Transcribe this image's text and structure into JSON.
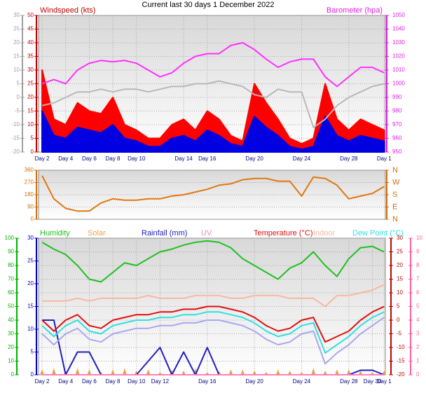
{
  "chart_data": [
    {
      "type": "line",
      "title": "Current last 30 days 1 December 2022",
      "ylabel": "Windspeed (kts)",
      "y2label": "Barometer (hpa)",
      "x": [
        0,
        1,
        2,
        3,
        4,
        5,
        6,
        7,
        8,
        9,
        10,
        11,
        12,
        13,
        14,
        15,
        16,
        17,
        18,
        19,
        20,
        21,
        22,
        23,
        24,
        25,
        26,
        27,
        28,
        29
      ],
      "xlim": [
        -0.3,
        29.1
      ],
      "xticks": [
        {
          "value": 0,
          "label": "Day 2"
        },
        {
          "value": 2,
          "label": "Day 4"
        },
        {
          "value": 4,
          "label": "Day 6"
        },
        {
          "value": 6,
          "label": "Day 8"
        },
        {
          "value": 8,
          "label": "Day 10"
        },
        {
          "value": 12,
          "label": "Day 14"
        },
        {
          "value": 14,
          "label": "Day 16"
        },
        {
          "value": 18,
          "label": "Day 20"
        },
        {
          "value": 22,
          "label": "Day 24"
        },
        {
          "value": 26,
          "label": "Day 28"
        },
        {
          "value": 29,
          "label": "Day 1"
        }
      ],
      "ylim": [
        0,
        50
      ],
      "yticks": [
        0,
        5,
        10,
        15,
        20,
        25,
        30,
        35,
        40,
        45,
        50
      ],
      "ycolor": "#c00000",
      "y2lim": [
        950,
        1050
      ],
      "y2ticks": [
        950,
        960,
        970,
        980,
        990,
        1000,
        1010,
        1020,
        1030,
        1040,
        1050
      ],
      "y2color": "#e020e0",
      "y3lim": [
        -20,
        30
      ],
      "y3ticks": [
        -20,
        -15,
        -10,
        -5,
        0,
        5,
        10,
        15,
        20,
        25,
        30
      ],
      "y3color": "#a0a0a0",
      "grid": true,
      "series": [
        {
          "color": "#ff0000",
          "fill": true,
          "axis": "y",
          "values": [
            30,
            12,
            10,
            18,
            15,
            14,
            20,
            10,
            8,
            5,
            5,
            10,
            12,
            8,
            15,
            12,
            6,
            4,
            25,
            18,
            12,
            5,
            3,
            5,
            25,
            12,
            8,
            12,
            10,
            8
          ]
        },
        {
          "color": "#0000e0",
          "fill": true,
          "axis": "y",
          "values": [
            15,
            6,
            5,
            9,
            8,
            7,
            10,
            5,
            4,
            2,
            2,
            5,
            6,
            4,
            8,
            6,
            3,
            2,
            13,
            9,
            6,
            2,
            1,
            2,
            13,
            6,
            4,
            6,
            5,
            4
          ]
        },
        {
          "color": "#b8b8b8",
          "axis": "y3",
          "values": [
            -3,
            -2,
            0,
            2,
            2,
            3,
            2,
            3,
            3,
            2,
            3,
            4,
            4,
            5,
            5,
            6,
            5,
            4,
            1,
            0,
            3,
            2,
            2,
            -11,
            -8,
            -3,
            0,
            2,
            4,
            5
          ]
        },
        {
          "color": "#ff30ff",
          "axis": "y2",
          "values": [
            1000,
            1003,
            1000,
            1010,
            1015,
            1017,
            1016,
            1017,
            1015,
            1010,
            1005,
            1008,
            1015,
            1020,
            1022,
            1022,
            1028,
            1030,
            1025,
            1018,
            1012,
            1016,
            1018,
            1018,
            1005,
            998,
            1005,
            1012,
            1012,
            1008
          ]
        }
      ]
    },
    {
      "type": "line",
      "x": [
        0,
        1,
        2,
        3,
        4,
        5,
        6,
        7,
        8,
        9,
        10,
        11,
        12,
        13,
        14,
        15,
        16,
        17,
        18,
        19,
        20,
        21,
        22,
        23,
        24,
        25,
        26,
        27,
        28,
        29
      ],
      "xlim": [
        -0.3,
        29.1
      ],
      "ylim": [
        0,
        360
      ],
      "yticks": [
        0,
        90,
        180,
        270,
        360
      ],
      "ycolor": "#d07010",
      "y2lim": [
        0,
        360
      ],
      "y2ticks": [
        {
          "value": 0,
          "label": "N"
        },
        {
          "value": 90,
          "label": "E"
        },
        {
          "value": 180,
          "label": "S"
        },
        {
          "value": 270,
          "label": "W"
        },
        {
          "value": 360,
          "label": "N"
        }
      ],
      "y2color": "#d07010",
      "grid": true,
      "series": [
        {
          "color": "#e07810",
          "axis": "y",
          "values": [
            320,
            150,
            80,
            60,
            60,
            120,
            150,
            140,
            140,
            150,
            150,
            170,
            180,
            200,
            220,
            250,
            260,
            290,
            300,
            300,
            280,
            280,
            170,
            310,
            300,
            250,
            150,
            170,
            190,
            240
          ]
        }
      ]
    },
    {
      "type": "line",
      "x": [
        0,
        1,
        2,
        3,
        4,
        5,
        6,
        7,
        8,
        9,
        10,
        11,
        12,
        13,
        14,
        15,
        16,
        17,
        18,
        19,
        20,
        21,
        22,
        23,
        24,
        25,
        26,
        27,
        28,
        29
      ],
      "xlim": [
        -0.3,
        29.1
      ],
      "xticks": [
        {
          "value": 0,
          "label": "Day 2"
        },
        {
          "value": 2,
          "label": "Day 4"
        },
        {
          "value": 4,
          "label": "Day 6"
        },
        {
          "value": 6,
          "label": "Day 8"
        },
        {
          "value": 8,
          "label": "Day 10"
        },
        {
          "value": 10,
          "label": "Day 12"
        },
        {
          "value": 14,
          "label": "Day 16"
        },
        {
          "value": 18,
          "label": "Day 20"
        },
        {
          "value": 22,
          "label": "Day 24"
        },
        {
          "value": 26,
          "label": "Day 28"
        },
        {
          "value": 28,
          "label": "Day 30"
        },
        {
          "value": 29,
          "label": "Day 1"
        }
      ],
      "ylim": [
        0,
        100
      ],
      "yticks": [
        0,
        10,
        20,
        30,
        40,
        50,
        60,
        70,
        80,
        90,
        100
      ],
      "ycolor": "#00b000",
      "y2lim": [
        0,
        30
      ],
      "y2ticks": [
        0,
        5,
        10,
        15,
        20,
        25,
        30
      ],
      "y2color": "#0000c0",
      "y3lim": [
        -20,
        30
      ],
      "y3ticks": [
        -20,
        -15,
        -10,
        -5,
        0,
        5,
        10,
        15,
        20,
        25,
        30
      ],
      "y3color": "#c00000",
      "y4lim": [
        0,
        10
      ],
      "y4ticks": [
        0,
        1,
        2,
        3,
        4,
        5,
        6,
        7,
        8,
        9,
        10
      ],
      "y4color": "#ff60a0",
      "grid": true,
      "series": [
        {
          "name": "Humidity",
          "color": "#20c020",
          "axis": "y",
          "values": [
            97,
            92,
            88,
            80,
            70,
            68,
            75,
            82,
            80,
            85,
            90,
            92,
            95,
            97,
            98,
            97,
            93,
            85,
            80,
            75,
            70,
            78,
            82,
            90,
            80,
            72,
            85,
            93,
            94,
            90
          ]
        },
        {
          "name": "Solar",
          "color": "#f0a040",
          "axis": "y",
          "bars": true,
          "values": [
            4,
            5,
            3,
            5,
            4,
            2,
            4,
            5,
            3,
            4,
            2,
            4,
            3,
            5,
            2,
            3,
            4,
            4,
            3,
            2,
            4,
            3,
            2,
            5,
            3,
            4,
            4,
            3,
            2,
            3
          ]
        },
        {
          "name": "Rainfall (mm)",
          "color": "#2020c0",
          "axis": "y2",
          "values": [
            12,
            12,
            0,
            5,
            5,
            0,
            0,
            0,
            0,
            3,
            6,
            0,
            5,
            0,
            6,
            0,
            0,
            0,
            0,
            0,
            0,
            0,
            0,
            0,
            0,
            0,
            0,
            1,
            1,
            0
          ]
        },
        {
          "name": "UV",
          "color": "#ff80c0",
          "axis": "y4",
          "values": [
            0,
            0,
            0,
            0,
            0,
            0,
            0,
            0,
            0,
            0,
            0,
            0,
            0,
            0,
            0,
            0,
            0,
            0,
            0,
            0,
            0,
            0,
            0,
            0,
            0,
            0,
            0,
            0,
            0,
            0
          ]
        },
        {
          "name": "Temperature (°C)",
          "color": "#e01010",
          "axis": "y3",
          "values": [
            0,
            -4,
            0,
            2,
            -2,
            -3,
            0,
            1,
            2,
            2,
            3,
            3,
            4,
            4,
            5,
            5,
            4,
            3,
            1,
            -2,
            -4,
            -3,
            0,
            1,
            -8,
            -6,
            -4,
            0,
            3,
            5
          ]
        },
        {
          "name": "Indoor",
          "color": "#f8b8a0",
          "axis": "y3",
          "values": [
            7,
            7,
            7,
            8,
            7,
            8,
            8,
            8,
            8,
            9,
            8,
            8,
            8,
            9,
            9,
            9,
            8,
            8,
            9,
            9,
            9,
            8,
            8,
            8,
            5,
            9,
            9,
            10,
            11,
            13
          ]
        },
        {
          "name": "Dew Point (°C)",
          "color": "#30e0e0",
          "axis": "y3",
          "values": [
            -2,
            -6,
            -2,
            0,
            -4,
            -5,
            -2,
            -1,
            0,
            0,
            1,
            1,
            2,
            2,
            3,
            3,
            2,
            1,
            -1,
            -4,
            -6,
            -5,
            -2,
            -1,
            -12,
            -9,
            -6,
            -2,
            1,
            3
          ]
        },
        {
          "color": "#a8a8f0",
          "axis": "y3",
          "values": [
            -5,
            -9,
            -5,
            -3,
            -7,
            -8,
            -5,
            -4,
            -3,
            -3,
            -2,
            -2,
            -1,
            -1,
            0,
            0,
            -1,
            -2,
            -4,
            -7,
            -9,
            -8,
            -5,
            -4,
            -16,
            -12,
            -9,
            -5,
            -2,
            1
          ]
        }
      ]
    }
  ]
}
